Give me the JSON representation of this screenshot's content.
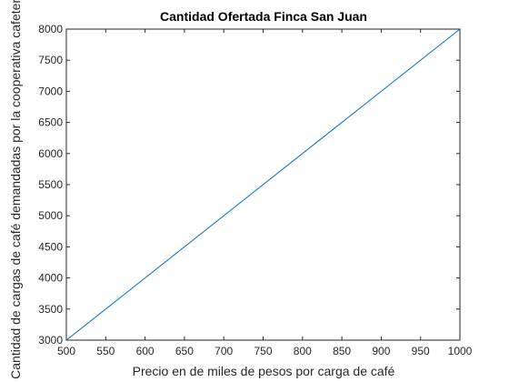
{
  "chart_data": {
    "type": "line",
    "title": "Cantidad Ofertada Finca San Juan",
    "xlabel": "Precio en de miles de pesos por carga de café",
    "ylabel": "Cantidad de cargas de café demandadas por la cooperativa cafetera",
    "xlim": [
      500,
      1000
    ],
    "ylim": [
      3000,
      8000
    ],
    "xticks": [
      500,
      550,
      600,
      650,
      700,
      750,
      800,
      850,
      900,
      950,
      1000
    ],
    "yticks": [
      3000,
      3500,
      4000,
      4500,
      5000,
      5500,
      6000,
      6500,
      7000,
      7500,
      8000
    ],
    "grid": false,
    "series": [
      {
        "x": [
          500,
          1000
        ],
        "y": [
          3000,
          8000
        ],
        "color": "#0072BD"
      }
    ]
  }
}
